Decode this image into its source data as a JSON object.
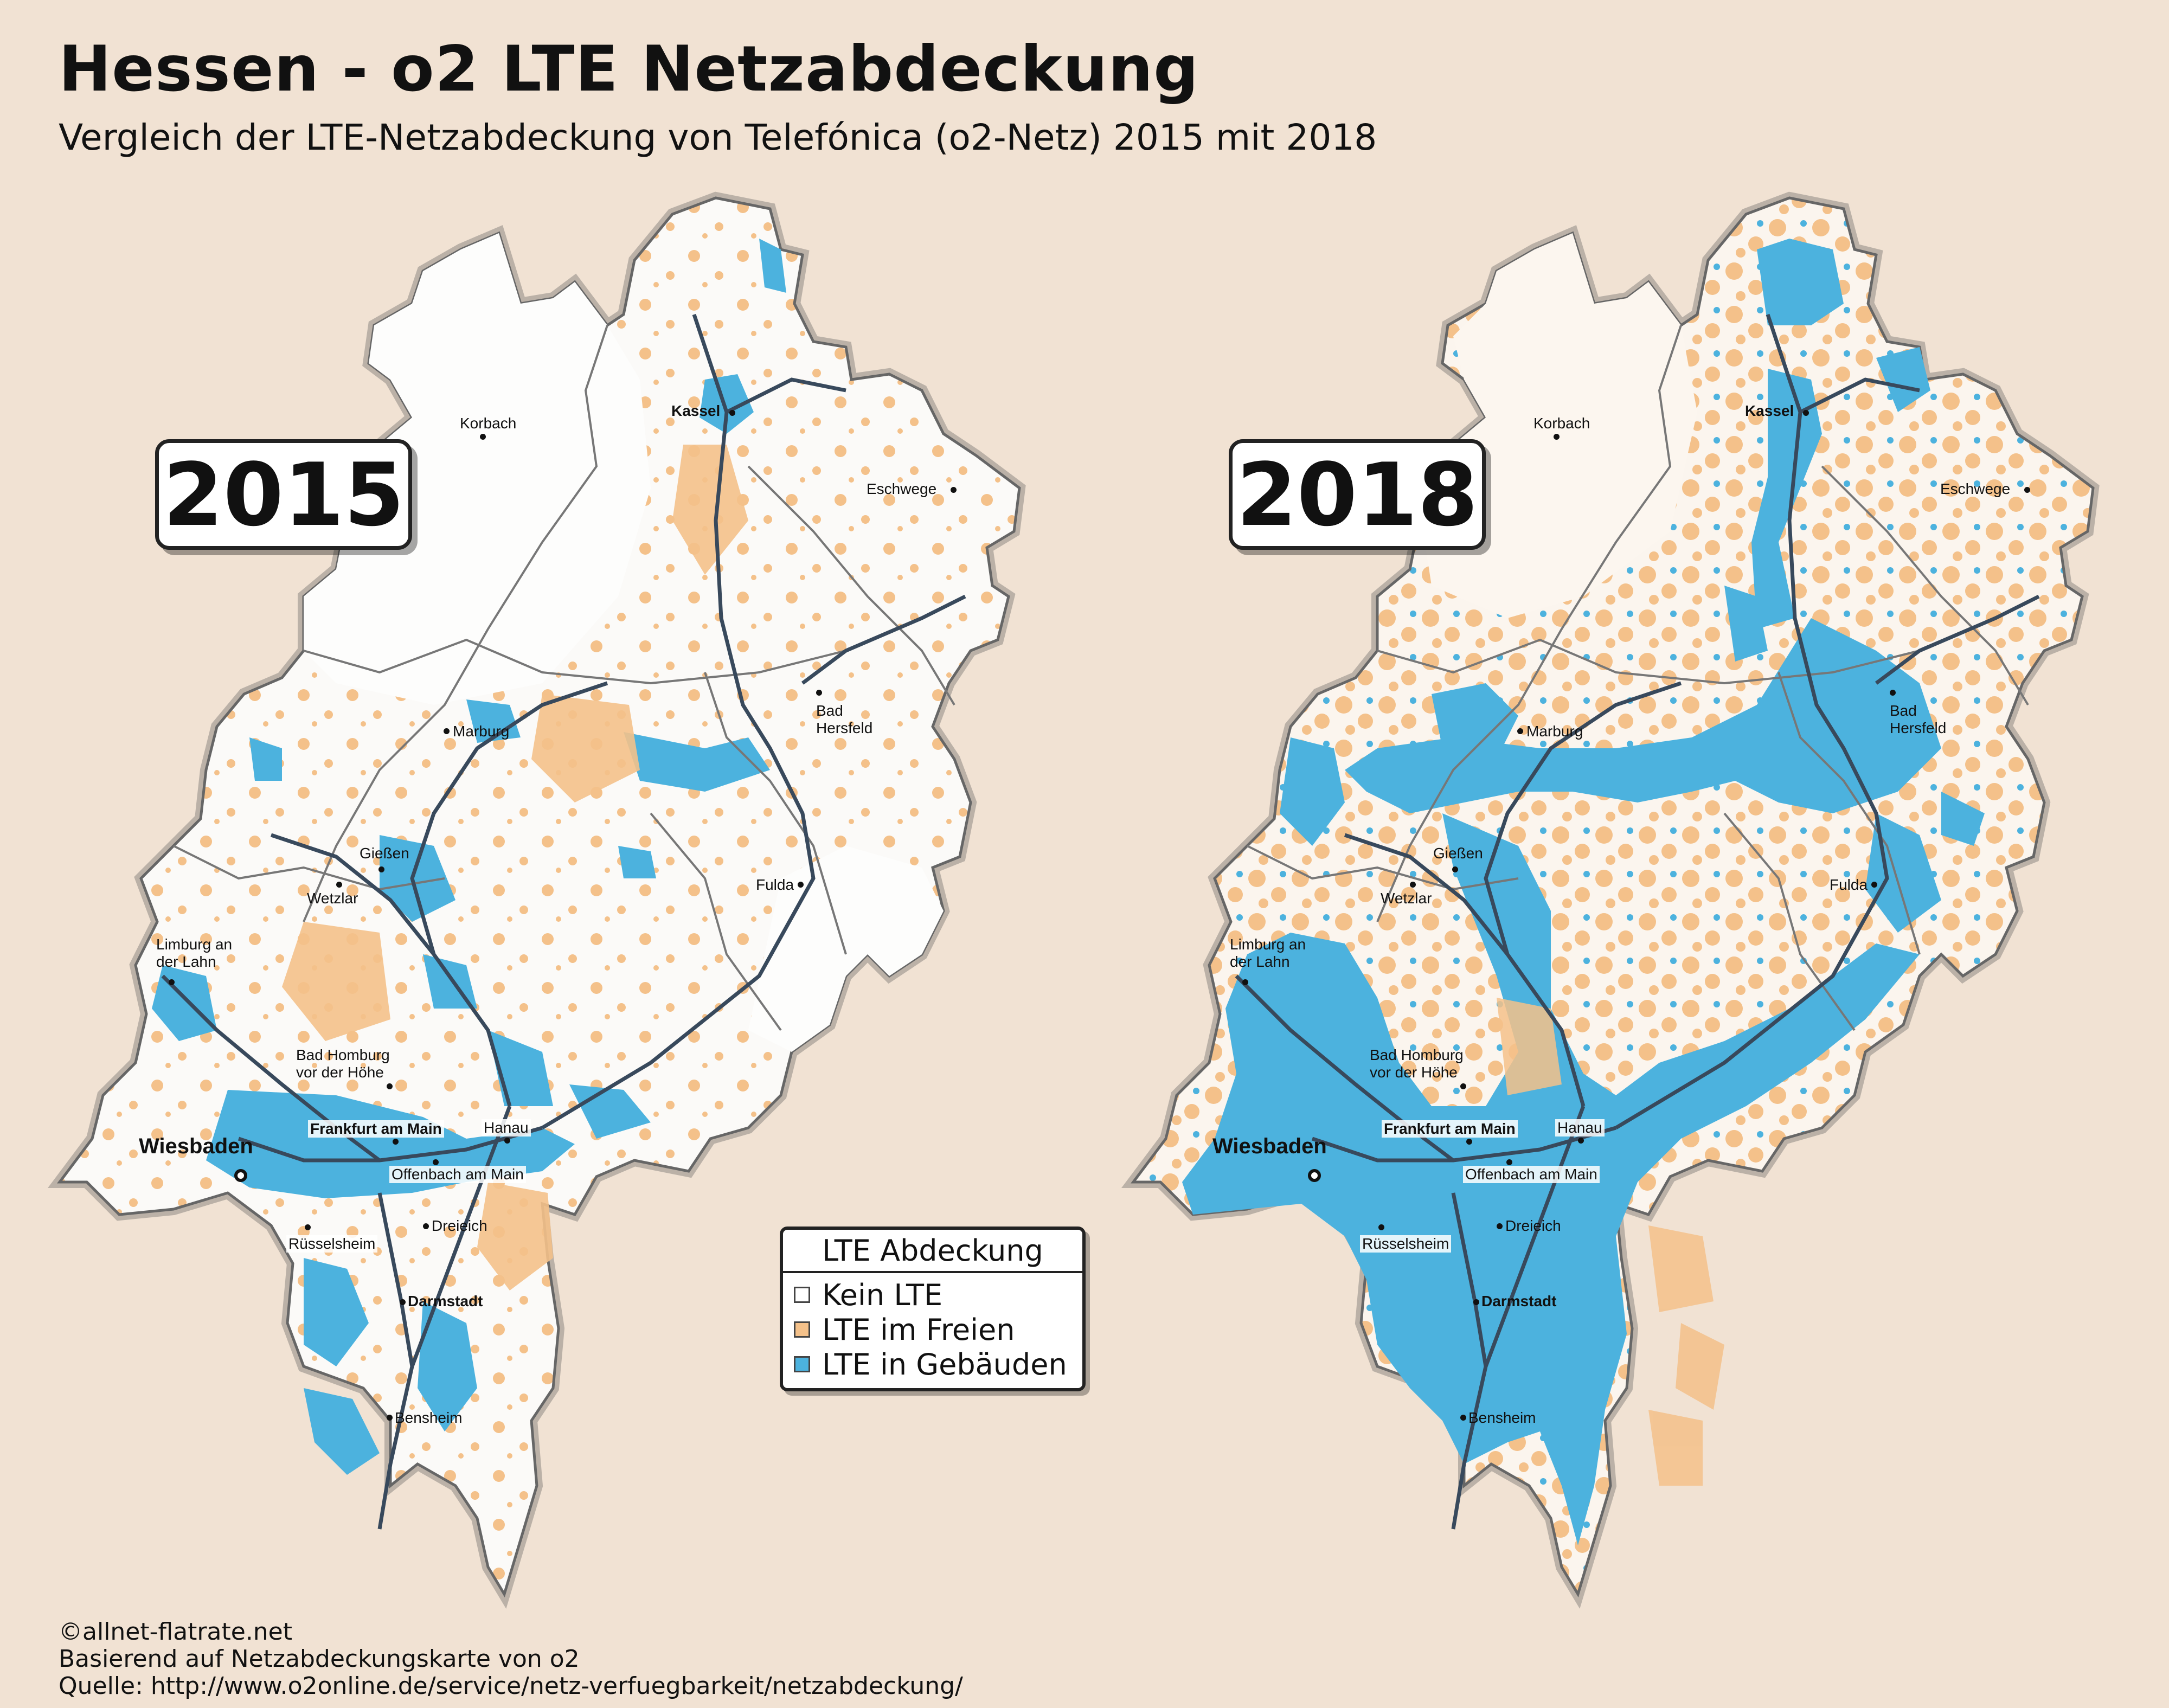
{
  "title": "Hessen - o2 LTE Netzabdeckung",
  "subtitle": "Vergleich der LTE-Netzabdeckung von Telefónica (o2-Netz) 2015 mit 2018",
  "maps": [
    {
      "year": "2015",
      "coverage": "lower"
    },
    {
      "year": "2018",
      "coverage": "higher"
    }
  ],
  "cities": {
    "korbach": "Korbach",
    "kassel": "Kassel",
    "eschwege": "Eschwege",
    "marburg": "Marburg",
    "bad_hersfeld_1": "Bad",
    "bad_hersfeld_2": "Hersfeld",
    "giessen": "Gießen",
    "wetzlar": "Wetzlar",
    "fulda": "Fulda",
    "limburg_1": "Limburg an",
    "limburg_2": "der Lahn",
    "bad_homburg_1": "Bad Homburg",
    "bad_homburg_2": "vor der Höhe",
    "frankfurt": "Frankfurt am Main",
    "hanau": "Hanau",
    "wiesbaden": "Wiesbaden",
    "offenbach": "Offenbach am Main",
    "dreieich": "Dreieich",
    "ruesselsheim": "Rüsselsheim",
    "darmstadt": "Darmstadt",
    "bensheim": "Bensheim"
  },
  "legend": {
    "title": "LTE Abdeckung",
    "items": [
      {
        "label": "Kein LTE",
        "color": "#ffffff"
      },
      {
        "label": "LTE im Freien",
        "color": "#f4c18a"
      },
      {
        "label": "LTE in Gebäuden",
        "color": "#4cb2de"
      }
    ]
  },
  "colors": {
    "background": "#f1e2d3",
    "no_lte": "#ffffff",
    "outdoor": "#f4c18a",
    "indoor": "#4cb2de"
  },
  "footer": {
    "copyright": "©allnet-flatrate.net",
    "basis": "Basierend auf Netzabdeckungskarte von o2",
    "source": "Quelle: http://www.o2online.de/service/netz-verfuegbarkeit/netzabdeckung/"
  }
}
